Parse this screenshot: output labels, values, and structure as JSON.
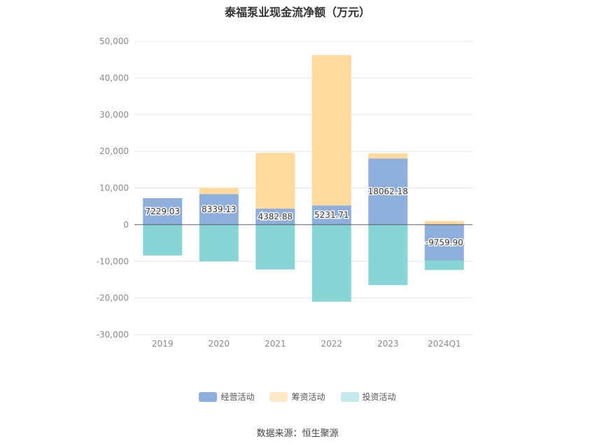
{
  "chart_data": {
    "type": "bar",
    "title": "泰福泵业现金流净额（万元）",
    "categories": [
      "2019",
      "2020",
      "2021",
      "2022",
      "2023",
      "2024Q1"
    ],
    "ylim": [
      -30000,
      50000
    ],
    "yticks": [
      -30000,
      -20000,
      -10000,
      0,
      10000,
      20000,
      30000,
      40000,
      50000
    ],
    "grid": true,
    "legend_position": "bottom-center",
    "series": [
      {
        "name": "经营活动",
        "color": "#8eaedc",
        "values": [
          7229.03,
          8339.13,
          4382.88,
          5231.71,
          18062.18,
          -9759.9
        ],
        "labels": [
          "7229.03",
          "8339.13",
          "4382.88",
          "5231.71",
          "18062.18",
          "-9759.90"
        ]
      },
      {
        "name": "筹资活动",
        "color": "#fedb9c",
        "values": [
          -100,
          1700,
          15200,
          41000,
          1400,
          1000
        ]
      },
      {
        "name": "投资活动",
        "color": "#88d5d8",
        "values": [
          -8300,
          -10000,
          -12200,
          -21000,
          -16500,
          -2600
        ]
      }
    ]
  },
  "source_note": "数据来源：恒生聚源"
}
